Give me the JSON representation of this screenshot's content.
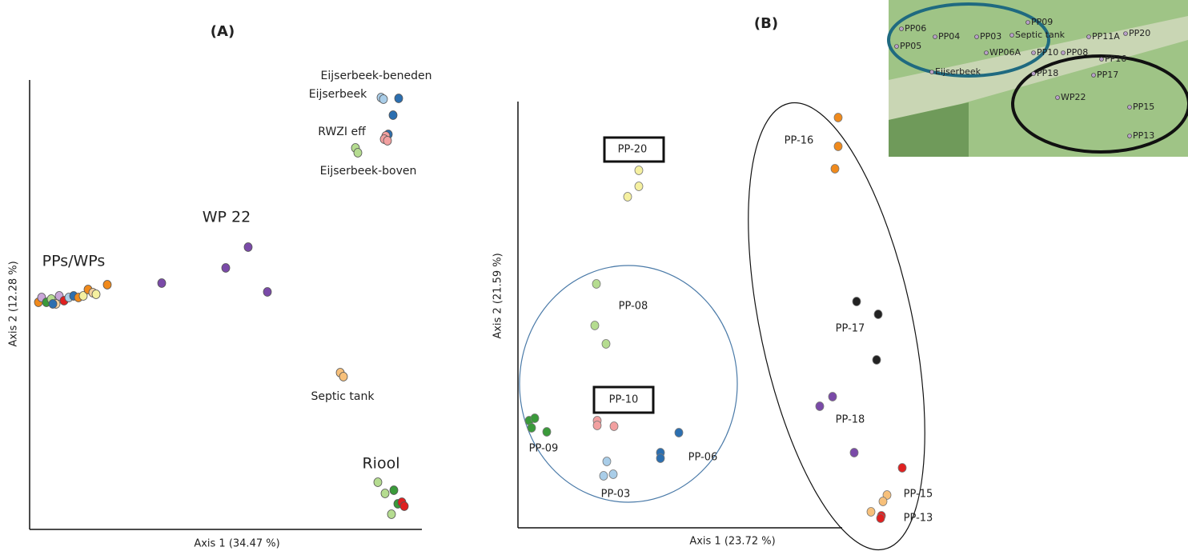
{
  "panel_a": {
    "title": "(A)",
    "x_axis_label": "Axis 1 (34.47 %)",
    "y_axis_label": "Axis 2 (12.28 %)",
    "labels": [
      "Eijserbeek-beneden",
      "Eijserbeek",
      "RWZI eff",
      "Eijserbeek-boven",
      "WP 22",
      "PPs/WPs",
      "Septic tank",
      "Riool"
    ]
  },
  "panel_b": {
    "title": "(B)",
    "x_axis_label": "Axis 1 (23.72 %)",
    "y_axis_label": "Axis 2 (21.59 %)",
    "labels": [
      "PP-20",
      "PP-08",
      "PP-10",
      "PP-09",
      "PP-06",
      "PP-03",
      "PP-16",
      "PP-17",
      "PP-18",
      "PP-15",
      "PP-13"
    ]
  },
  "map": {
    "labels": [
      "PP06",
      "PP05",
      "PP04",
      "PP03",
      "PP09",
      "Septic tank",
      "WP06A",
      "PP10",
      "PP08",
      "PP11A",
      "PP20",
      "PP16",
      "Eijserbeek",
      "PP18",
      "PP17",
      "WP22",
      "PP15",
      "PP13"
    ]
  }
}
